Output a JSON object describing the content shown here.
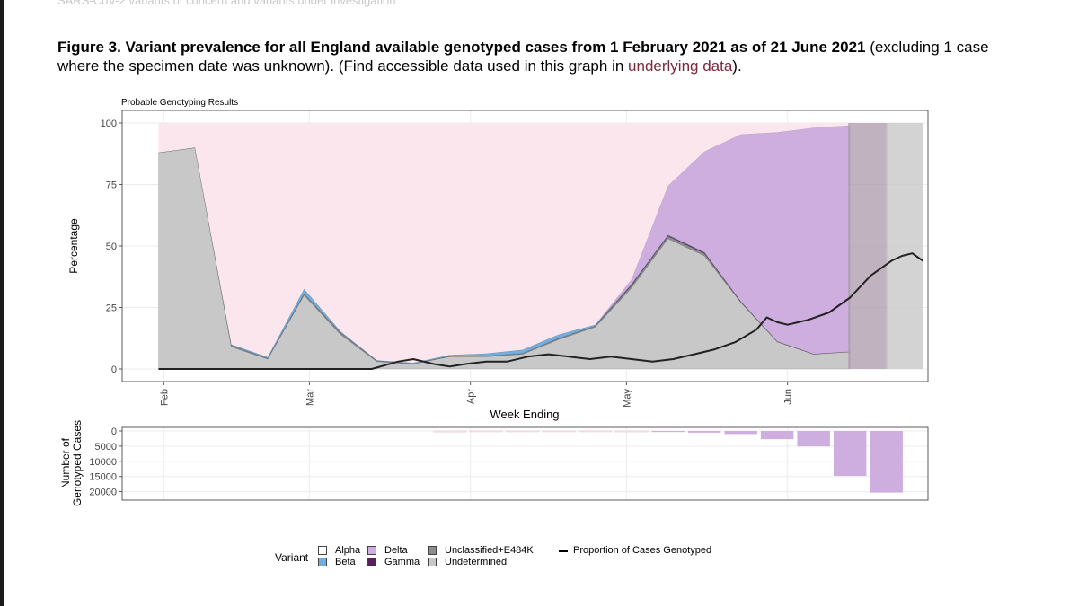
{
  "header": {
    "text": "SARS-CoV-2 variants of concern and variants under investigation"
  },
  "caption": {
    "bold": "Figure 3. Variant prevalence for all England available genotyped cases from 1 February 2021 as of 21 June 2021",
    "rest": " (excluding 1 case where the specimen date was unknown). (Find accessible data used in this graph in ",
    "link": "underlying data",
    "end": ")."
  },
  "colors": {
    "alpha": "#fbe6ee",
    "beta": "#74aede",
    "delta": "#cdaedf",
    "gamma": "#5a1e5e",
    "unclassified": "#8c8c8c",
    "undetermined": "#c8c8c8",
    "line": "#222222"
  },
  "chart_data": [
    {
      "type": "area",
      "title": "Probable Genotyping Results",
      "xlabel": "Week Ending",
      "ylabel": "Percentage",
      "ylim": [
        0,
        100
      ],
      "yticks": [
        0,
        25,
        50,
        75,
        100
      ],
      "xlim_days": [
        -8,
        147
      ],
      "month_ticks": [
        {
          "label": "Feb",
          "day": 0
        },
        {
          "label": "Mar",
          "day": 28
        },
        {
          "label": "Apr",
          "day": 59
        },
        {
          "label": "May",
          "day": 89
        },
        {
          "label": "Jun",
          "day": 120
        }
      ],
      "weeks_day": [
        -1,
        6,
        13,
        20,
        27,
        34,
        41,
        48,
        55,
        62,
        69,
        76,
        83,
        90,
        97,
        104,
        111,
        118,
        125,
        132,
        139,
        146
      ],
      "stacked_percent": {
        "undetermined": [
          88,
          90,
          9,
          4,
          30,
          14,
          3,
          2,
          5,
          5,
          6,
          12,
          17,
          33,
          53,
          46,
          27,
          11,
          6,
          7,
          100,
          100
        ],
        "unclassified": [
          0,
          0,
          0.5,
          0.3,
          0.5,
          0.8,
          0.3,
          0.2,
          0.2,
          0.3,
          0.3,
          0.5,
          0.5,
          1,
          1,
          1,
          0.3,
          0.2,
          0.1,
          0,
          0,
          0
        ],
        "gamma": [
          0,
          0,
          0,
          0,
          0,
          0,
          0,
          0,
          0,
          0,
          0,
          0,
          0,
          0.3,
          0.3,
          0.3,
          0.1,
          0,
          0,
          0,
          0,
          0
        ],
        "beta": [
          0,
          0,
          0.5,
          0.5,
          2,
          0.5,
          0.2,
          0.3,
          0.5,
          1,
          1.5,
          1.5,
          0.5,
          0.2,
          0.2,
          0.1,
          0,
          0,
          0,
          0,
          0,
          0
        ],
        "delta": [
          0,
          0,
          0,
          0,
          0,
          0,
          0,
          0,
          0,
          0,
          0,
          0,
          0,
          2,
          20,
          41,
          68,
          85,
          92,
          92,
          0,
          0
        ],
        "alpha": [
          12,
          10,
          90,
          95.2,
          67.5,
          84.7,
          96.5,
          97.5,
          94.3,
          93.7,
          92.2,
          86,
          82,
          63.5,
          25.5,
          11.6,
          4.6,
          3.8,
          1.9,
          1,
          0,
          0
        ]
      },
      "proportion_genotyped": {
        "name": "Proportion of Cases Genotyped",
        "x_day": [
          -1,
          10,
          20,
          30,
          40,
          45,
          48,
          52,
          55,
          58,
          62,
          66,
          70,
          74,
          78,
          82,
          86,
          90,
          94,
          98,
          102,
          106,
          110,
          114,
          116,
          118,
          120,
          124,
          128,
          132,
          136,
          140,
          142,
          144,
          146
        ],
        "y": [
          0,
          0,
          0,
          0,
          0,
          3,
          4,
          2,
          1,
          2,
          3,
          3,
          5,
          6,
          5,
          4,
          5,
          4,
          3,
          4,
          6,
          8,
          11,
          16,
          21,
          19,
          18,
          20,
          23,
          29,
          38,
          44,
          46,
          47,
          44
        ]
      }
    },
    {
      "type": "bar",
      "ylabel": "Number of Genotyped Cases",
      "yticks": [
        0,
        5000,
        10000,
        15000,
        20000
      ],
      "ylim": [
        0,
        21000
      ],
      "bars": [
        {
          "day": 55,
          "value": 350,
          "color": "alpha"
        },
        {
          "day": 62,
          "value": 300,
          "color": "alpha"
        },
        {
          "day": 69,
          "value": 260,
          "color": "alpha"
        },
        {
          "day": 76,
          "value": 280,
          "color": "alpha"
        },
        {
          "day": 83,
          "value": 300,
          "color": "alpha"
        },
        {
          "day": 90,
          "value": 320,
          "color": "alpha"
        },
        {
          "day": 97,
          "value": 350,
          "color": "delta"
        },
        {
          "day": 104,
          "value": 550,
          "color": "delta"
        },
        {
          "day": 111,
          "value": 1000,
          "color": "delta"
        },
        {
          "day": 118,
          "value": 2700,
          "color": "delta"
        },
        {
          "day": 125,
          "value": 5100,
          "color": "delta"
        },
        {
          "day": 132,
          "value": 14800,
          "color": "delta"
        },
        {
          "day": 139,
          "value": 20300,
          "color": "delta"
        }
      ]
    }
  ],
  "legend": {
    "title": "Variant",
    "alpha": "Alpha",
    "beta": "Beta",
    "delta": "Delta",
    "gamma": "Gamma",
    "unclassified": "Unclassified+E484K",
    "undetermined": "Undetermined",
    "line": "Proportion of Cases Genotyped"
  }
}
